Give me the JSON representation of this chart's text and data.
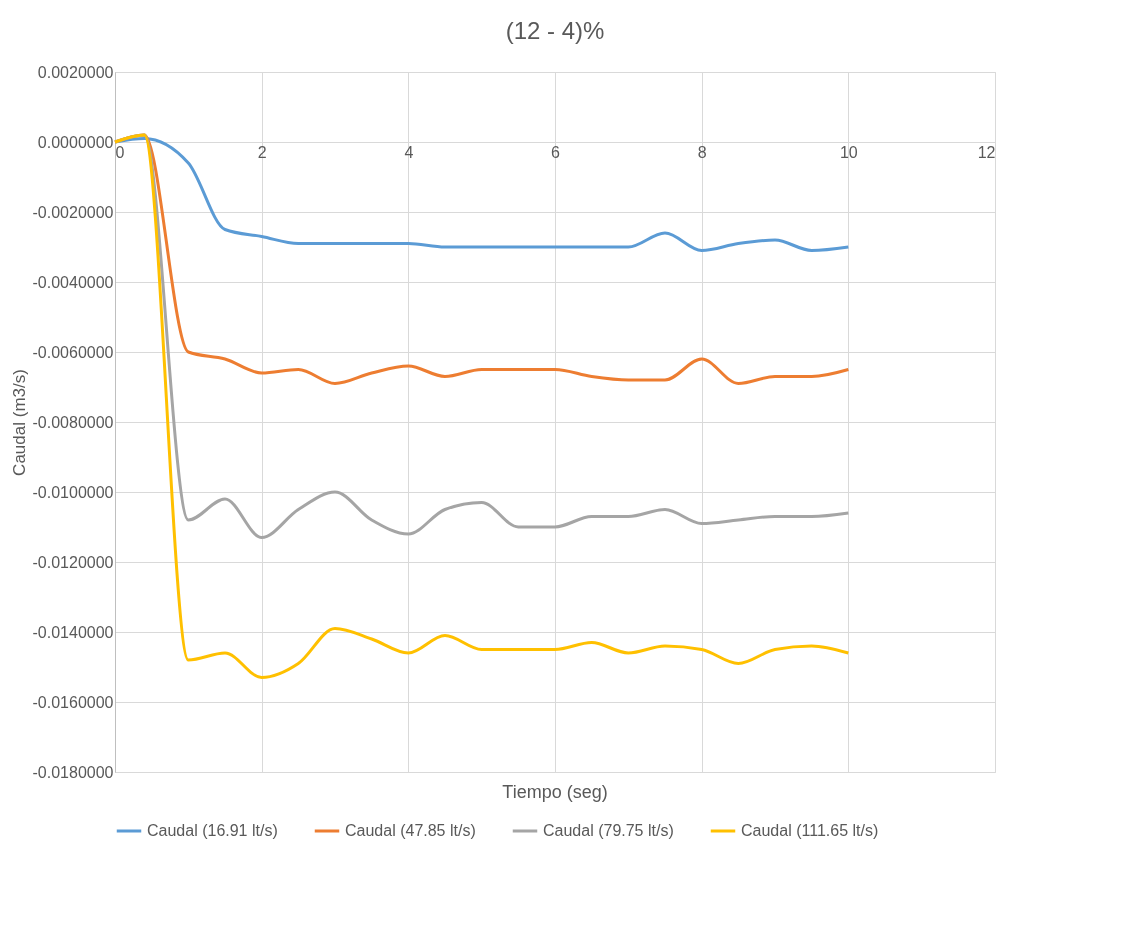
{
  "chart_data": {
    "type": "line",
    "title": "(12 - 4)%",
    "xlabel": "Tiempo (seg)",
    "ylabel": "Caudal (m3/s)",
    "x": [
      0,
      0.4,
      1,
      1.5,
      2,
      2.5,
      3,
      3.5,
      4,
      4.5,
      5,
      5.5,
      6,
      6.5,
      7,
      7.5,
      8,
      8.5,
      9,
      9.5,
      10
    ],
    "series": [
      {
        "name": "Caudal (16.91 lt/s)",
        "color": "#5b9bd5",
        "values": [
          0,
          0.0001,
          -0.0006,
          -0.0025,
          -0.0027,
          -0.0029,
          -0.0029,
          -0.0029,
          -0.0029,
          -0.003,
          -0.003,
          -0.003,
          -0.003,
          -0.003,
          -0.003,
          -0.0026,
          -0.0031,
          -0.0029,
          -0.0028,
          -0.0031,
          -0.003
        ]
      },
      {
        "name": "Caudal (47.85 lt/s)",
        "color": "#ed7d31",
        "values": [
          0,
          0.0002,
          -0.006,
          -0.0062,
          -0.0066,
          -0.0065,
          -0.0069,
          -0.0066,
          -0.0064,
          -0.0067,
          -0.0065,
          -0.0065,
          -0.0065,
          -0.0067,
          -0.0068,
          -0.0068,
          -0.0062,
          -0.0069,
          -0.0067,
          -0.0067,
          -0.0065
        ]
      },
      {
        "name": "Caudal (79.75 lt/s)",
        "color": "#a5a5a5",
        "values": [
          0,
          0.0002,
          -0.0108,
          -0.0102,
          -0.0113,
          -0.0105,
          -0.01,
          -0.0108,
          -0.0112,
          -0.0105,
          -0.0103,
          -0.011,
          -0.011,
          -0.0107,
          -0.0107,
          -0.0105,
          -0.0109,
          -0.0108,
          -0.0107,
          -0.0107,
          -0.0106
        ]
      },
      {
        "name": "Caudal (111.65 lt/s)",
        "color": "#ffc000",
        "values": [
          0,
          0.0002,
          -0.0148,
          -0.0146,
          -0.0153,
          -0.0149,
          -0.0139,
          -0.0142,
          -0.0146,
          -0.0141,
          -0.0145,
          -0.0145,
          -0.0145,
          -0.0143,
          -0.0146,
          -0.0144,
          -0.0145,
          -0.0149,
          -0.0145,
          -0.0144,
          -0.0146
        ]
      }
    ],
    "xlim": [
      0,
      12
    ],
    "xticks": [
      0,
      2,
      4,
      6,
      8,
      10,
      12
    ],
    "ylim": [
      -0.018,
      0.002
    ],
    "yticks": [
      {
        "value": 0.002,
        "label": "0.0020000"
      },
      {
        "value": 0,
        "label": "0.0000000"
      },
      {
        "value": -0.002,
        "label": "-0.0020000"
      },
      {
        "value": -0.004,
        "label": "-0.0040000"
      },
      {
        "value": -0.006,
        "label": "-0.0060000"
      },
      {
        "value": -0.008,
        "label": "-0.0080000"
      },
      {
        "value": -0.01,
        "label": "-0.0100000"
      },
      {
        "value": -0.012,
        "label": "-0.0120000"
      },
      {
        "value": -0.014,
        "label": "-0.0140000"
      },
      {
        "value": -0.016,
        "label": "-0.0160000"
      },
      {
        "value": -0.018,
        "label": "-0.0180000"
      }
    ],
    "grid": true,
    "legend": "bottom",
    "marker": "none",
    "line_style": "solid"
  }
}
